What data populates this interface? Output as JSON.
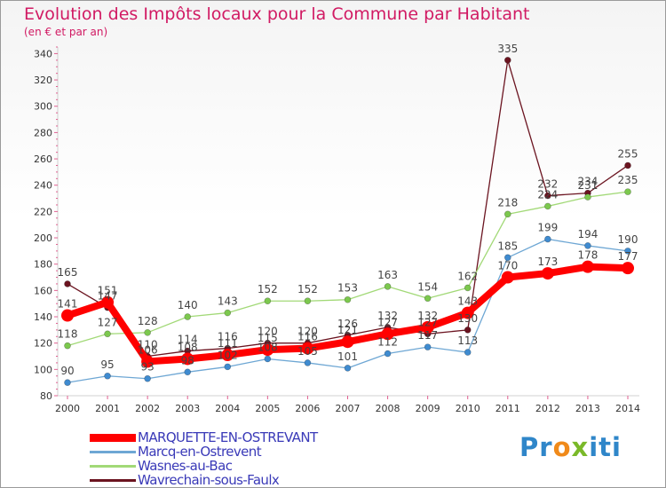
{
  "header": {
    "title": "Evolution des Impôts locaux pour la Commune par Habitant",
    "subtitle": "(en € et par an)"
  },
  "logo": {
    "text_part1": "Pr",
    "text_part2": "o",
    "text_part3": "x",
    "text_part4": "iti",
    "colors": [
      "#2f86c9",
      "#f08a1a",
      "#7ab929"
    ]
  },
  "chart_data": {
    "type": "line",
    "title": "Evolution des Impôts locaux pour la Commune par Habitant",
    "subtitle": "(en € et par an)",
    "xlabel": "",
    "ylabel": "",
    "ylim": [
      80,
      345
    ],
    "yticks": [
      80,
      100,
      120,
      140,
      160,
      180,
      200,
      220,
      240,
      260,
      280,
      300,
      320,
      340
    ],
    "grid": false,
    "legend_position": "bottom-left",
    "categories": [
      "2000",
      "2001",
      "2002",
      "2003",
      "2004",
      "2005",
      "2006",
      "2007",
      "2008",
      "2009",
      "2010",
      "2011",
      "2012",
      "2013",
      "2014"
    ],
    "series": [
      {
        "name": "Wavrechain-sous-Faulx",
        "color": "#6b1420",
        "marker": "#6b1420",
        "values": [
          165,
          147,
          110,
          114,
          116,
          120,
          120,
          126,
          132,
          127,
          130,
          335,
          232,
          234,
          255
        ]
      },
      {
        "name": "Wasnes-au-Bac",
        "color": "#a2d977",
        "marker": "#7cc84e",
        "values": [
          118,
          127,
          128,
          140,
          143,
          152,
          152,
          153,
          163,
          154,
          162,
          218,
          224,
          231,
          235
        ]
      },
      {
        "name": "Marcq-en-Ostrevent",
        "color": "#6ea7d4",
        "marker": "#3f8bd0",
        "values": [
          90,
          95,
          93,
          98,
          102,
          108,
          105,
          101,
          112,
          117,
          113,
          185,
          199,
          194,
          190
        ]
      },
      {
        "name": "MARQUETTE-EN-OSTREVANT",
        "color": "#ff0000",
        "marker": "#ff0000",
        "values": [
          141,
          151,
          106,
          108,
          111,
          115,
          116,
          121,
          127,
          132,
          143,
          170,
          173,
          178,
          177
        ]
      }
    ],
    "labels": [
      {
        "series": "Wavrechain-sous-Faulx",
        "values": [
          "165",
          "147",
          "110",
          "114",
          "116",
          "120",
          "120",
          "126",
          "132",
          "127",
          "130",
          "335",
          "232",
          "234",
          "255"
        ]
      },
      {
        "series": "Wasnes-au-Bac",
        "values": [
          "118",
          "127",
          "128",
          "140",
          "143",
          "152",
          "152",
          "153",
          "163",
          "154",
          "162",
          "218",
          "224",
          "231",
          "235"
        ]
      },
      {
        "series": "Marcq-en-Ostrevent",
        "values": [
          "90",
          "95",
          "93",
          "98",
          "102",
          "108",
          "105",
          "101",
          "112",
          "117",
          "113",
          "185",
          "199",
          "194",
          "190"
        ]
      },
      {
        "series": "MARQUETTE-EN-OSTREVANT",
        "values": [
          "141",
          "151",
          "106",
          "108",
          "111",
          "115",
          "116",
          "121",
          "127",
          "132",
          "143",
          "170",
          "173",
          "178",
          "177"
        ]
      }
    ]
  },
  "legend": {
    "items": [
      {
        "label": "MARQUETTE-EN-OSTREVANT",
        "color": "#ff0000"
      },
      {
        "label": "Marcq-en-Ostrevent",
        "color": "#6ea7d4"
      },
      {
        "label": "Wasnes-au-Bac",
        "color": "#a2d977"
      },
      {
        "label": "Wavrechain-sous-Faulx",
        "color": "#6b1420"
      }
    ]
  }
}
